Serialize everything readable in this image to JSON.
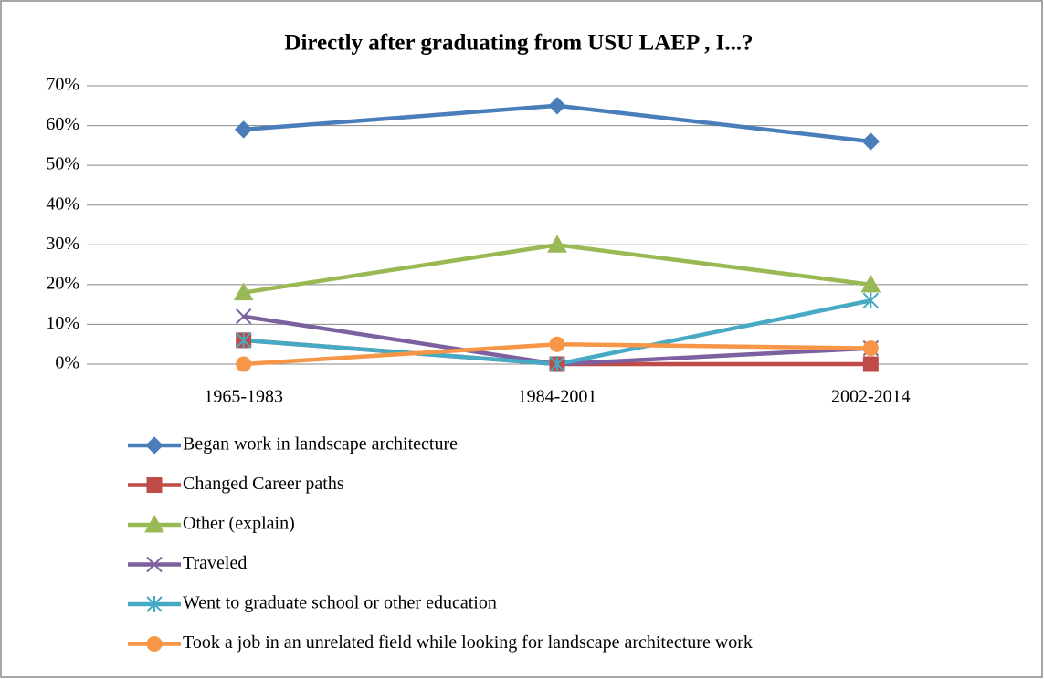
{
  "chart_data": {
    "type": "line",
    "title": "Directly after graduating from USU LAEP , I...?",
    "categories": [
      "1965-1983",
      "1984-2001",
      "2002-2014"
    ],
    "series": [
      {
        "name": "Began work in landscape architecture",
        "color": "#4a7ebb",
        "marker": "diamond",
        "values": [
          59,
          65,
          56
        ]
      },
      {
        "name": "Changed Career paths",
        "color": "#be4b48",
        "marker": "square",
        "values": [
          6,
          0,
          0
        ]
      },
      {
        "name": "Other (explain)",
        "color": "#98b954",
        "marker": "triangle",
        "values": [
          18,
          30,
          20
        ]
      },
      {
        "name": "Traveled",
        "color": "#7d60a0",
        "marker": "x",
        "values": [
          12,
          0,
          4
        ]
      },
      {
        "name": "Went to graduate school or other education",
        "color": "#46aac5",
        "marker": "star",
        "values": [
          6,
          0,
          16
        ]
      },
      {
        "name": "Took a job in an unrelated field while looking for landscape architecture work",
        "color": "#f79646",
        "marker": "circle",
        "values": [
          0,
          5,
          4
        ]
      }
    ],
    "ylim": [
      0,
      70
    ],
    "yticks": [
      {
        "value": 0,
        "label": "0%"
      },
      {
        "value": 10,
        "label": "10%"
      },
      {
        "value": 20,
        "label": "20%"
      },
      {
        "value": 30,
        "label": "30%"
      },
      {
        "value": 40,
        "label": "40%"
      },
      {
        "value": 50,
        "label": "50%"
      },
      {
        "value": 60,
        "label": "60%"
      },
      {
        "value": 70,
        "label": "70%"
      }
    ],
    "grid": true,
    "legend": "bottom"
  }
}
